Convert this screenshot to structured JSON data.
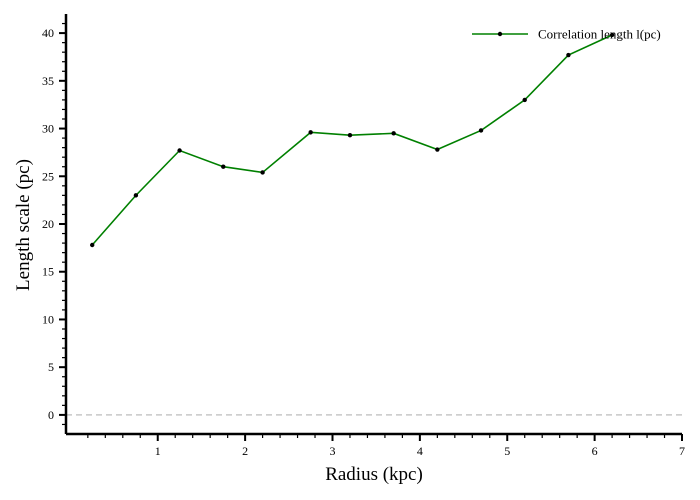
{
  "chart_data": {
    "type": "line",
    "title": "",
    "xlabel": "Radius (kpc)",
    "ylabel": "Length scale (pc)",
    "xlim": [
      -0.05,
      7
    ],
    "ylim": [
      -2,
      42
    ],
    "xticks": [
      1,
      2,
      3,
      4,
      5,
      6,
      7
    ],
    "yticks": [
      0,
      5,
      10,
      15,
      20,
      25,
      30,
      35,
      40
    ],
    "grid": false,
    "legend_position": "top-right",
    "reference_line": {
      "y": 0,
      "style": "dashed",
      "color": "#c8c8c8"
    },
    "series": [
      {
        "name": "Correlation length l(pc)",
        "color": "#008000",
        "marker_color": "#000000",
        "x": [
          0.25,
          0.75,
          1.25,
          1.75,
          2.2,
          2.75,
          3.2,
          3.7,
          4.2,
          4.7,
          5.2,
          5.7,
          6.2
        ],
        "y": [
          17.8,
          23.0,
          27.7,
          26.0,
          25.4,
          29.6,
          29.3,
          29.5,
          27.8,
          29.8,
          33.0,
          37.7,
          39.8
        ]
      }
    ]
  }
}
